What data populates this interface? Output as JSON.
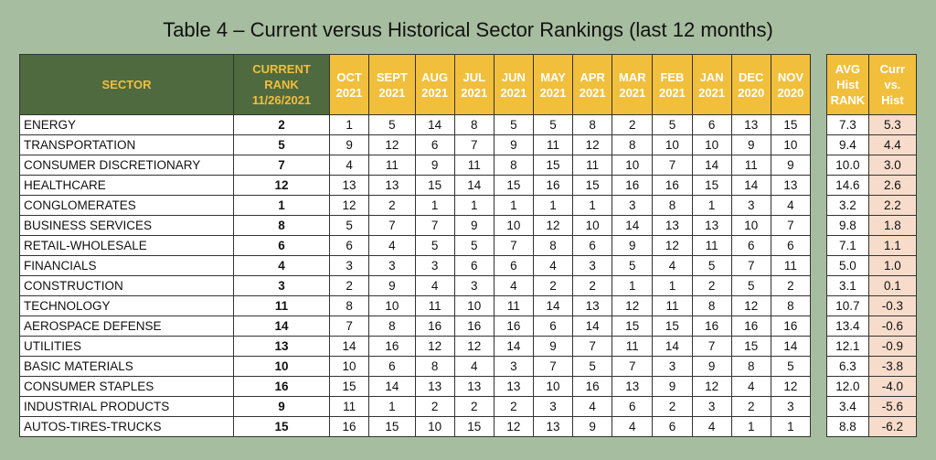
{
  "title": "Table 4 – Current versus Historical Sector Rankings (last 12 months)",
  "headers": {
    "sector": "SECTOR",
    "current_rank": [
      "CURRENT",
      "RANK",
      "11/26/2021"
    ],
    "months": [
      [
        "OCT",
        "2021"
      ],
      [
        "SEPT",
        "2021"
      ],
      [
        "AUG",
        "2021"
      ],
      [
        "JUL",
        "2021"
      ],
      [
        "JUN",
        "2021"
      ],
      [
        "MAY",
        "2021"
      ],
      [
        "APR",
        "2021"
      ],
      [
        "MAR",
        "2021"
      ],
      [
        "FEB",
        "2021"
      ],
      [
        "JAN",
        "2021"
      ],
      [
        "DEC",
        "2020"
      ],
      [
        "NOV",
        "2020"
      ]
    ],
    "avg_hist": [
      "AVG",
      "Hist",
      "RANK"
    ],
    "curr_vs_hist": [
      "Curr",
      "vs.",
      "Hist"
    ]
  },
  "rows": [
    {
      "sector": "ENERGY",
      "current": "2",
      "months": [
        "1",
        "5",
        "14",
        "8",
        "5",
        "5",
        "8",
        "2",
        "5",
        "6",
        "13",
        "15"
      ],
      "avg": "7.3",
      "diff": "5.3"
    },
    {
      "sector": "TRANSPORTATION",
      "current": "5",
      "months": [
        "9",
        "12",
        "6",
        "7",
        "9",
        "11",
        "12",
        "8",
        "10",
        "10",
        "9",
        "10"
      ],
      "avg": "9.4",
      "diff": "4.4"
    },
    {
      "sector": "CONSUMER DISCRETIONARY",
      "current": "7",
      "months": [
        "4",
        "11",
        "9",
        "11",
        "8",
        "15",
        "11",
        "10",
        "7",
        "14",
        "11",
        "9"
      ],
      "avg": "10.0",
      "diff": "3.0"
    },
    {
      "sector": "HEALTHCARE",
      "current": "12",
      "months": [
        "13",
        "13",
        "15",
        "14",
        "15",
        "16",
        "15",
        "16",
        "16",
        "15",
        "14",
        "13"
      ],
      "avg": "14.6",
      "diff": "2.6"
    },
    {
      "sector": "CONGLOMERATES",
      "current": "1",
      "months": [
        "12",
        "2",
        "1",
        "1",
        "1",
        "1",
        "1",
        "3",
        "8",
        "1",
        "3",
        "4"
      ],
      "avg": "3.2",
      "diff": "2.2"
    },
    {
      "sector": "BUSINESS SERVICES",
      "current": "8",
      "months": [
        "5",
        "7",
        "7",
        "9",
        "10",
        "12",
        "10",
        "14",
        "13",
        "13",
        "10",
        "7"
      ],
      "avg": "9.8",
      "diff": "1.8"
    },
    {
      "sector": "RETAIL-WHOLESALE",
      "current": "6",
      "months": [
        "6",
        "4",
        "5",
        "5",
        "7",
        "8",
        "6",
        "9",
        "12",
        "11",
        "6",
        "6"
      ],
      "avg": "7.1",
      "diff": "1.1"
    },
    {
      "sector": "FINANCIALS",
      "current": "4",
      "months": [
        "3",
        "3",
        "3",
        "6",
        "6",
        "4",
        "3",
        "5",
        "4",
        "5",
        "7",
        "11"
      ],
      "avg": "5.0",
      "diff": "1.0"
    },
    {
      "sector": "CONSTRUCTION",
      "current": "3",
      "months": [
        "2",
        "9",
        "4",
        "3",
        "4",
        "2",
        "2",
        "1",
        "1",
        "2",
        "5",
        "2"
      ],
      "avg": "3.1",
      "diff": "0.1"
    },
    {
      "sector": "TECHNOLOGY",
      "current": "11",
      "months": [
        "8",
        "10",
        "11",
        "10",
        "11",
        "14",
        "13",
        "12",
        "11",
        "8",
        "12",
        "8"
      ],
      "avg": "10.7",
      "diff": "-0.3"
    },
    {
      "sector": "AEROSPACE DEFENSE",
      "current": "14",
      "months": [
        "7",
        "8",
        "16",
        "16",
        "16",
        "6",
        "14",
        "15",
        "15",
        "16",
        "16",
        "16"
      ],
      "avg": "13.4",
      "diff": "-0.6"
    },
    {
      "sector": "UTILITIES",
      "current": "13",
      "months": [
        "14",
        "16",
        "12",
        "12",
        "14",
        "9",
        "7",
        "11",
        "14",
        "7",
        "15",
        "14"
      ],
      "avg": "12.1",
      "diff": "-0.9"
    },
    {
      "sector": "BASIC MATERIALS",
      "current": "10",
      "months": [
        "10",
        "6",
        "8",
        "4",
        "3",
        "7",
        "5",
        "7",
        "3",
        "9",
        "8",
        "5"
      ],
      "avg": "6.3",
      "diff": "-3.8"
    },
    {
      "sector": "CONSUMER STAPLES",
      "current": "16",
      "months": [
        "15",
        "14",
        "13",
        "13",
        "13",
        "10",
        "16",
        "13",
        "9",
        "12",
        "4",
        "12"
      ],
      "avg": "12.0",
      "diff": "-4.0"
    },
    {
      "sector": "INDUSTRIAL PRODUCTS",
      "current": "9",
      "months": [
        "11",
        "1",
        "2",
        "2",
        "2",
        "3",
        "4",
        "6",
        "2",
        "3",
        "2",
        "3"
      ],
      "avg": "3.4",
      "diff": "-5.6"
    },
    {
      "sector": "AUTOS-TIRES-TRUCKS",
      "current": "15",
      "months": [
        "16",
        "15",
        "10",
        "15",
        "12",
        "13",
        "9",
        "4",
        "6",
        "4",
        "1",
        "1"
      ],
      "avg": "8.8",
      "diff": "-6.2"
    }
  ],
  "colors": {
    "background": "#a7bd9f",
    "header_dark": "#506a3f",
    "header_gold": "#f1bf3c",
    "curr_vs_hist_fill": "#f7dccb"
  }
}
